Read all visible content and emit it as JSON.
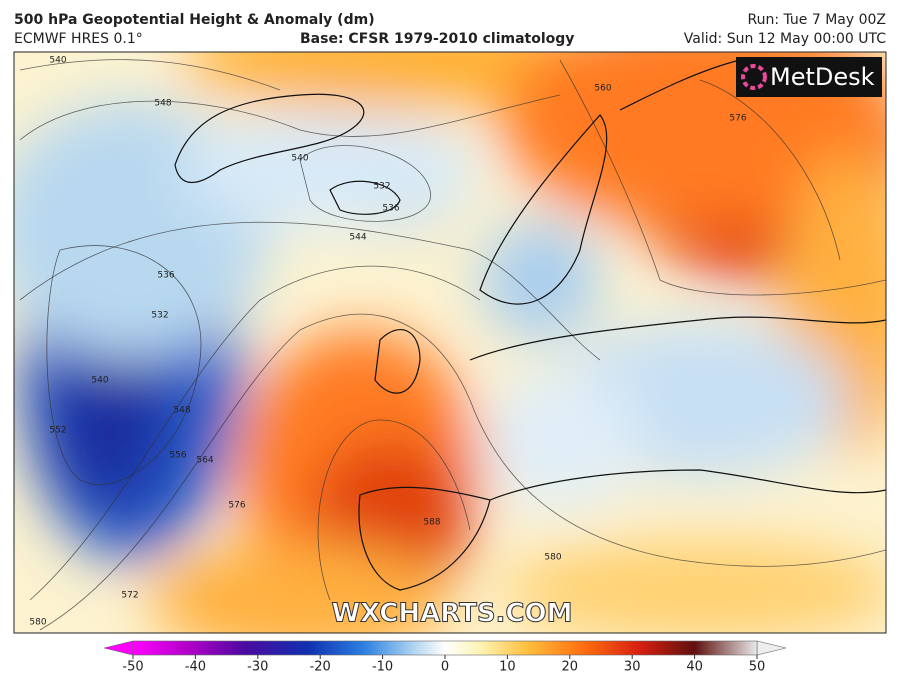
{
  "header": {
    "title": "500 hPa Geopotential Height & Anomaly (dm)",
    "model": "ECMWF HRES 0.1°",
    "base": "Base: CFSR 1979-2010 climatology",
    "run": "Run: Tue 7 May 00Z",
    "valid": "Valid: Sun 12 May 00:00 UTC"
  },
  "logo": "MetDesk",
  "watermark": "WXCHARTS.COM",
  "contour_labels": [
    540,
    548,
    540,
    532,
    536,
    544,
    536,
    532,
    540,
    552,
    548,
    556,
    564,
    576,
    572,
    580,
    560,
    576,
    588,
    580
  ],
  "colorbar": {
    "ticks": [
      -50,
      -40,
      -30,
      -20,
      -10,
      0,
      10,
      20,
      30,
      40,
      50
    ],
    "lim": [
      -50,
      50
    ]
  }
}
